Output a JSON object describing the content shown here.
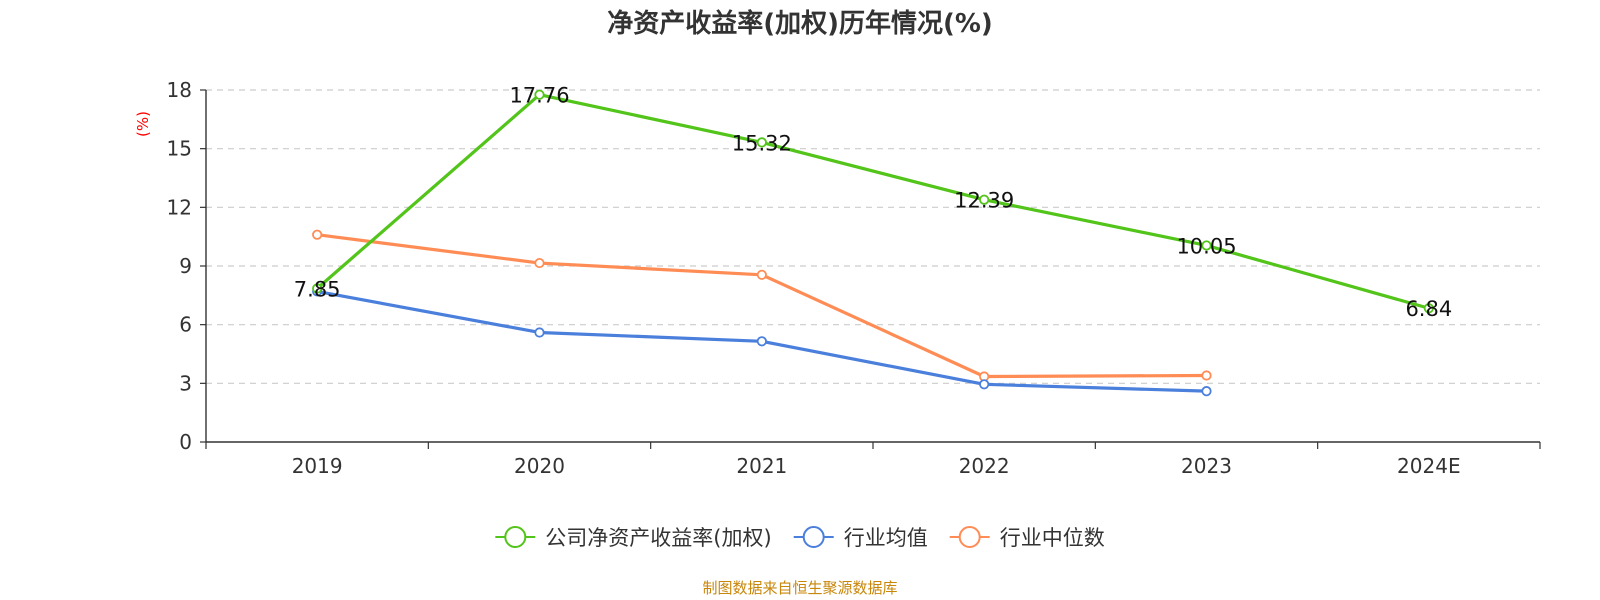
{
  "chart_data": {
    "type": "line",
    "title": "净资产收益率(加权)历年情况(%)",
    "ylabel": "(%)",
    "xlabel": "",
    "categories": [
      "2019",
      "2020",
      "2021",
      "2022",
      "2023",
      "2024E"
    ],
    "ylim": [
      0,
      18
    ],
    "yticks": [
      0,
      3,
      6,
      9,
      12,
      15,
      18
    ],
    "grid": true,
    "legend_position": "bottom-center",
    "series": [
      {
        "name": "公司净资产收益率(加权)",
        "color": "#52c41a",
        "values": [
          7.85,
          17.76,
          15.32,
          12.39,
          10.05,
          6.84
        ],
        "labels": [
          "7.85",
          "17.76",
          "15.32",
          "12.39",
          "10.05",
          "6.84"
        ]
      },
      {
        "name": "行业均值",
        "color": "#4a7fdc",
        "values": [
          7.7,
          5.6,
          5.15,
          2.95,
          2.6,
          null
        ]
      },
      {
        "name": "行业中位数",
        "color": "#ff8c55",
        "values": [
          10.6,
          9.15,
          8.55,
          3.35,
          3.4,
          null
        ]
      }
    ],
    "source": "制图数据来自恒生聚源数据库"
  }
}
